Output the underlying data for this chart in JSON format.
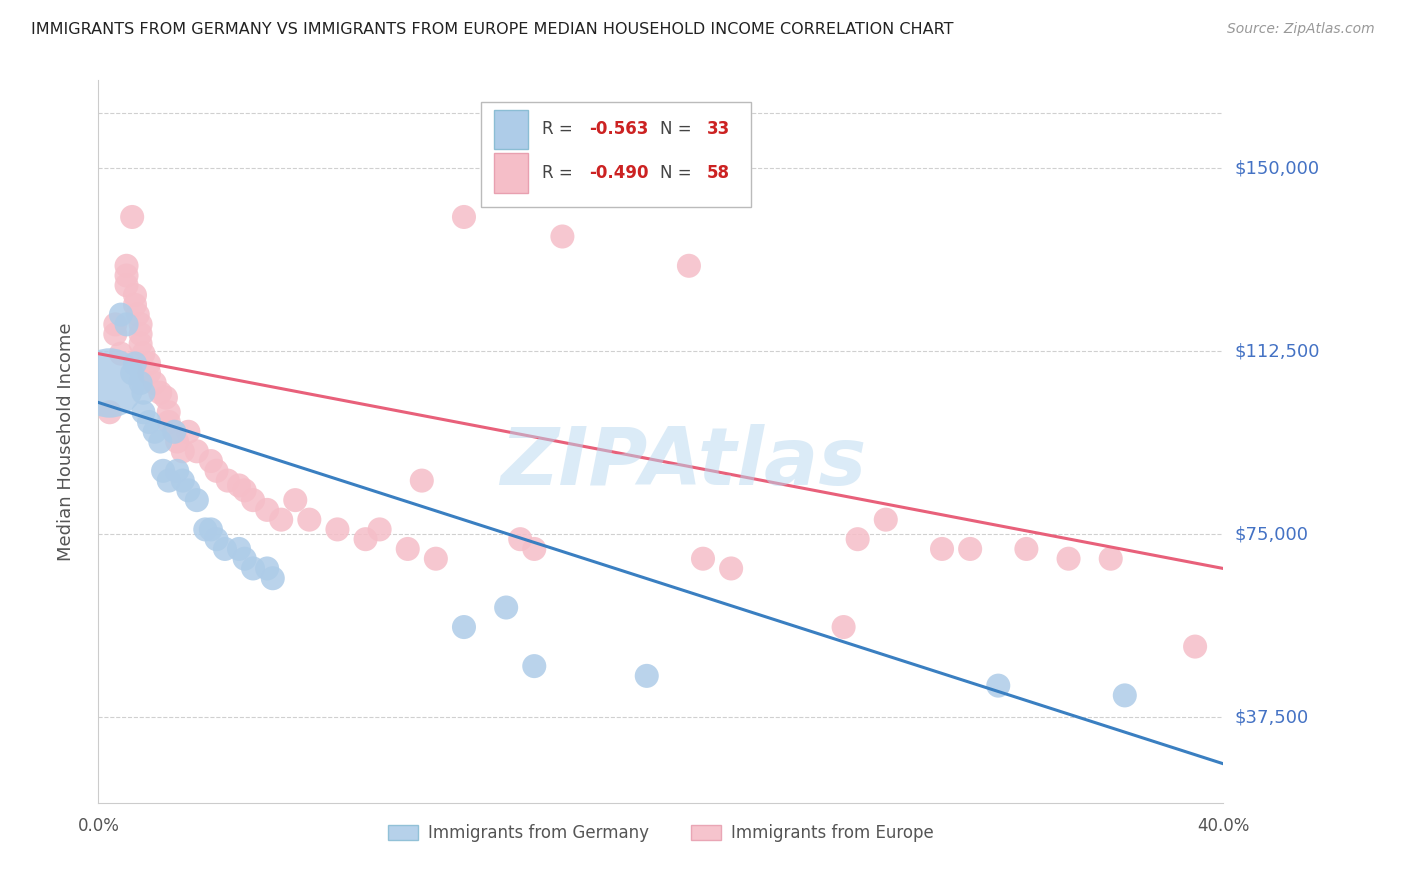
{
  "title": "IMMIGRANTS FROM GERMANY VS IMMIGRANTS FROM EUROPE MEDIAN HOUSEHOLD INCOME CORRELATION CHART",
  "source": "Source: ZipAtlas.com",
  "ylabel": "Median Household Income",
  "yticks": [
    37500,
    75000,
    112500,
    150000
  ],
  "ytick_labels": [
    "$37,500",
    "$75,000",
    "$112,500",
    "$150,000"
  ],
  "xlim": [
    0.0,
    0.4
  ],
  "ylim": [
    20000,
    168000
  ],
  "legend_blue_label": "Immigrants from Germany",
  "legend_pink_label": "Immigrants from Europe",
  "blue_color": "#aecce8",
  "pink_color": "#f5bec8",
  "blue_line_color": "#3a7fc1",
  "pink_line_color": "#e8607a",
  "ytick_color": "#4472c4",
  "watermark": "ZIPAtlas",
  "blue_scatter": [
    [
      0.004,
      106000
    ],
    [
      0.008,
      120000
    ],
    [
      0.01,
      118000
    ],
    [
      0.012,
      108000
    ],
    [
      0.013,
      110000
    ],
    [
      0.015,
      106000
    ],
    [
      0.016,
      104000
    ],
    [
      0.016,
      100000
    ],
    [
      0.018,
      98000
    ],
    [
      0.02,
      96000
    ],
    [
      0.022,
      94000
    ],
    [
      0.023,
      88000
    ],
    [
      0.025,
      86000
    ],
    [
      0.027,
      96000
    ],
    [
      0.028,
      88000
    ],
    [
      0.03,
      86000
    ],
    [
      0.032,
      84000
    ],
    [
      0.035,
      82000
    ],
    [
      0.038,
      76000
    ],
    [
      0.04,
      76000
    ],
    [
      0.042,
      74000
    ],
    [
      0.045,
      72000
    ],
    [
      0.05,
      72000
    ],
    [
      0.052,
      70000
    ],
    [
      0.055,
      68000
    ],
    [
      0.06,
      68000
    ],
    [
      0.062,
      66000
    ],
    [
      0.13,
      56000
    ],
    [
      0.145,
      60000
    ],
    [
      0.155,
      48000
    ],
    [
      0.195,
      46000
    ],
    [
      0.32,
      44000
    ],
    [
      0.365,
      42000
    ]
  ],
  "blue_large_idx": 0,
  "pink_scatter": [
    [
      0.004,
      100000
    ],
    [
      0.006,
      116000
    ],
    [
      0.006,
      118000
    ],
    [
      0.008,
      112000
    ],
    [
      0.01,
      130000
    ],
    [
      0.01,
      128000
    ],
    [
      0.01,
      126000
    ],
    [
      0.012,
      140000
    ],
    [
      0.013,
      124000
    ],
    [
      0.013,
      122000
    ],
    [
      0.014,
      120000
    ],
    [
      0.015,
      118000
    ],
    [
      0.015,
      116000
    ],
    [
      0.015,
      114000
    ],
    [
      0.016,
      112000
    ],
    [
      0.018,
      110000
    ],
    [
      0.018,
      108000
    ],
    [
      0.02,
      106000
    ],
    [
      0.022,
      104000
    ],
    [
      0.024,
      103000
    ],
    [
      0.025,
      100000
    ],
    [
      0.025,
      98000
    ],
    [
      0.027,
      96000
    ],
    [
      0.028,
      94000
    ],
    [
      0.03,
      92000
    ],
    [
      0.032,
      96000
    ],
    [
      0.035,
      92000
    ],
    [
      0.04,
      90000
    ],
    [
      0.042,
      88000
    ],
    [
      0.046,
      86000
    ],
    [
      0.05,
      85000
    ],
    [
      0.052,
      84000
    ],
    [
      0.055,
      82000
    ],
    [
      0.06,
      80000
    ],
    [
      0.065,
      78000
    ],
    [
      0.07,
      82000
    ],
    [
      0.075,
      78000
    ],
    [
      0.085,
      76000
    ],
    [
      0.095,
      74000
    ],
    [
      0.1,
      76000
    ],
    [
      0.11,
      72000
    ],
    [
      0.115,
      86000
    ],
    [
      0.12,
      70000
    ],
    [
      0.13,
      140000
    ],
    [
      0.15,
      74000
    ],
    [
      0.155,
      72000
    ],
    [
      0.165,
      136000
    ],
    [
      0.21,
      130000
    ],
    [
      0.215,
      70000
    ],
    [
      0.225,
      68000
    ],
    [
      0.265,
      56000
    ],
    [
      0.27,
      74000
    ],
    [
      0.28,
      78000
    ],
    [
      0.3,
      72000
    ],
    [
      0.31,
      72000
    ],
    [
      0.33,
      72000
    ],
    [
      0.345,
      70000
    ],
    [
      0.36,
      70000
    ],
    [
      0.39,
      52000
    ]
  ],
  "blue_line_x": [
    0.0,
    0.4
  ],
  "blue_line_y": [
    102000,
    28000
  ],
  "pink_line_x": [
    0.0,
    0.4
  ],
  "pink_line_y": [
    112000,
    68000
  ]
}
